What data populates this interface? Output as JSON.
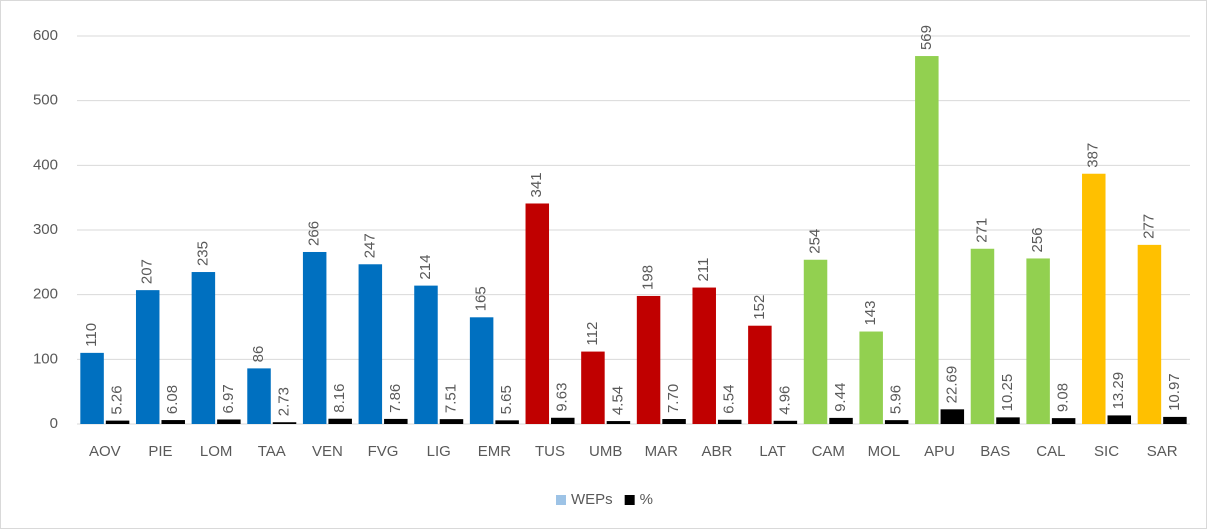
{
  "chart_data": {
    "type": "bar",
    "categories": [
      "AOV",
      "PIE",
      "LOM",
      "TAA",
      "VEN",
      "FVG",
      "LIG",
      "EMR",
      "TUS",
      "UMB",
      "MAR",
      "ABR",
      "LAT",
      "CAM",
      "MOL",
      "APU",
      "BAS",
      "CAL",
      "SIC",
      "SAR"
    ],
    "series": [
      {
        "name": "WEPs",
        "color": "#9dc3e6",
        "colors": [
          "#0070c0",
          "#0070c0",
          "#0070c0",
          "#0070c0",
          "#0070c0",
          "#0070c0",
          "#0070c0",
          "#0070c0",
          "#c00000",
          "#c00000",
          "#c00000",
          "#c00000",
          "#c00000",
          "#92d050",
          "#92d050",
          "#92d050",
          "#92d050",
          "#92d050",
          "#ffc000",
          "#ffc000"
        ],
        "values": [
          110,
          207,
          235,
          86,
          266,
          247,
          214,
          165,
          341,
          112,
          198,
          211,
          152,
          254,
          143,
          569,
          271,
          256,
          387,
          277
        ]
      },
      {
        "name": "%",
        "color": "#000000",
        "values": [
          5.26,
          6.08,
          6.97,
          2.73,
          8.16,
          7.86,
          7.51,
          5.65,
          9.63,
          4.54,
          7.7,
          6.54,
          4.96,
          9.44,
          5.96,
          22.69,
          10.25,
          9.08,
          13.29,
          10.97
        ],
        "value_labels": [
          "5.26",
          "6.08",
          "6.97",
          "2.73",
          "8.16",
          "7.86",
          "7.51",
          "5.65",
          "9.63",
          "4.54",
          "7.70",
          "6.54",
          "4.96",
          "9.44",
          "5.96",
          "22.69",
          "10.25",
          "9.08",
          "13.29",
          "10.97"
        ]
      }
    ],
    "ylim": [
      0,
      600
    ],
    "yticks": [
      0,
      100,
      200,
      300,
      400,
      500,
      600
    ],
    "grid": true,
    "legend": "bottom"
  }
}
